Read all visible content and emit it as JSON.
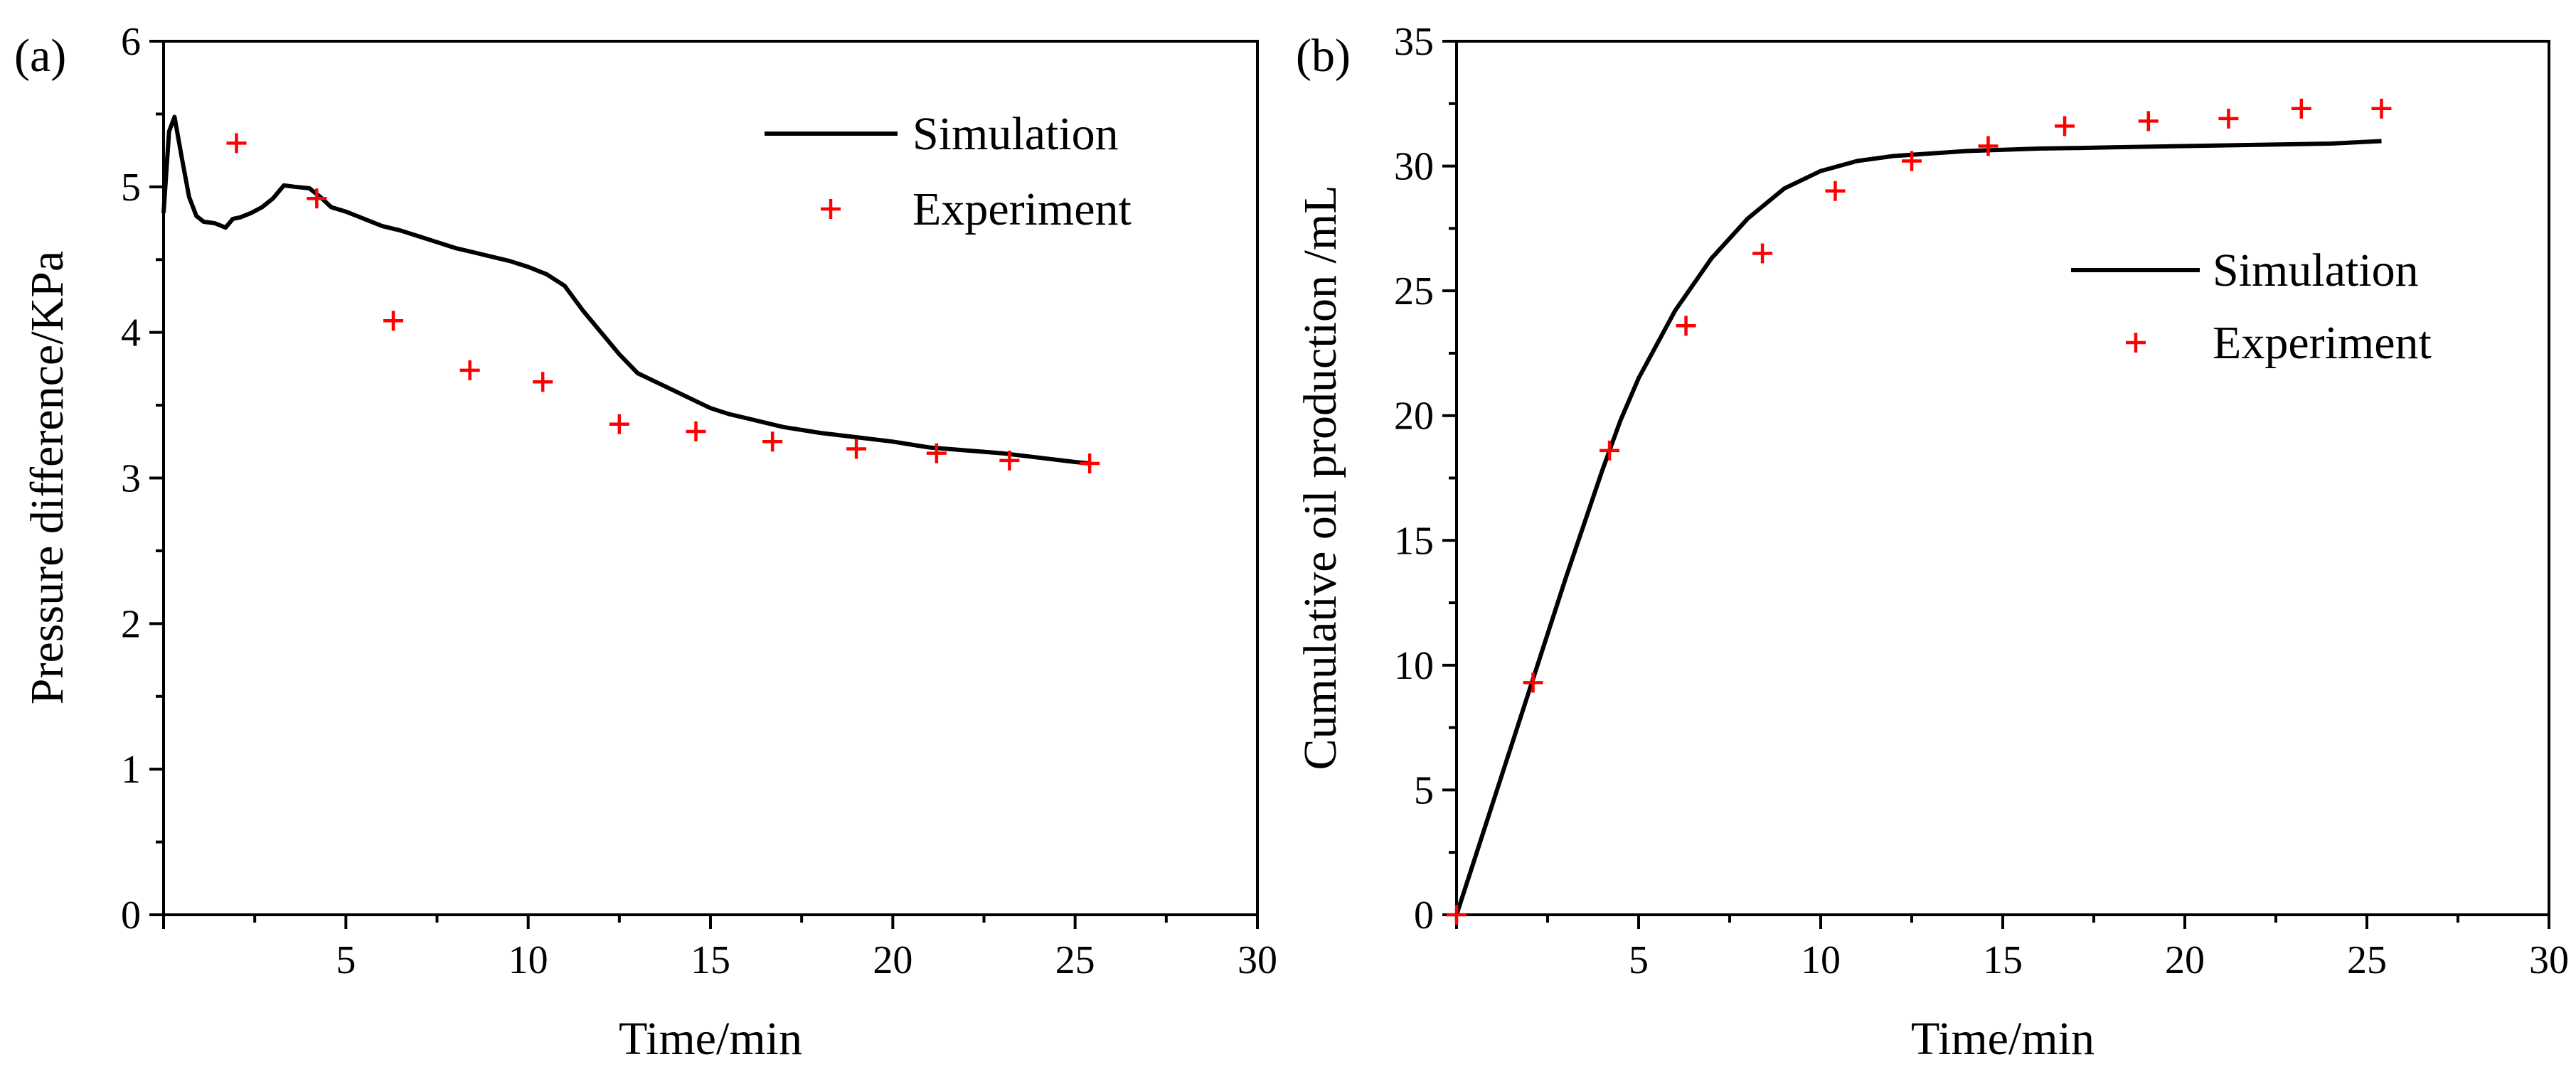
{
  "chart_data": [
    {
      "type": "line",
      "panel_label": "(a)",
      "title": "",
      "xlabel": "Time/min",
      "ylabel": "Pressure difference/KPa",
      "xlim": [
        0,
        30
      ],
      "ylim": [
        0,
        6
      ],
      "x_ticks": [
        0,
        5,
        10,
        15,
        20,
        25,
        30
      ],
      "x_tick_labels": [
        "",
        "5",
        "10",
        "15",
        "20",
        "25",
        "30"
      ],
      "y_ticks": [
        0,
        1,
        2,
        3,
        4,
        5,
        6
      ],
      "y_tick_labels": [
        "0",
        "1",
        "2",
        "3",
        "4",
        "5",
        "6"
      ],
      "legend_position": "top-right",
      "series": [
        {
          "name": "Simulation",
          "style": "line",
          "color": "#000000",
          "x": [
            0,
            0.15,
            0.3,
            0.5,
            0.7,
            0.9,
            1.1,
            1.4,
            1.7,
            1.9,
            2.1,
            2.4,
            2.7,
            3.0,
            3.3,
            3.6,
            4.0,
            4.3,
            4.6,
            5.0,
            5.5,
            6.0,
            6.5,
            7.0,
            7.5,
            8.0,
            8.5,
            9.0,
            9.5,
            10.0,
            10.5,
            11.0,
            11.5,
            12.0,
            12.5,
            13.0,
            13.5,
            14.0,
            14.5,
            15.0,
            15.5,
            16.0,
            16.5,
            17.0,
            18.0,
            19.0,
            20.0,
            21.0,
            22.0,
            23.0,
            24.0,
            25.0,
            25.4
          ],
          "values": [
            4.82,
            5.38,
            5.48,
            5.2,
            4.93,
            4.8,
            4.76,
            4.75,
            4.72,
            4.78,
            4.79,
            4.82,
            4.86,
            4.92,
            5.01,
            5.0,
            4.99,
            4.93,
            4.86,
            4.83,
            4.78,
            4.73,
            4.7,
            4.66,
            4.62,
            4.58,
            4.55,
            4.52,
            4.49,
            4.45,
            4.4,
            4.32,
            4.15,
            4.0,
            3.85,
            3.72,
            3.66,
            3.6,
            3.54,
            3.48,
            3.44,
            3.41,
            3.38,
            3.35,
            3.31,
            3.28,
            3.25,
            3.21,
            3.19,
            3.17,
            3.14,
            3.11,
            3.1
          ]
        },
        {
          "name": "Experiment",
          "style": "marker",
          "color": "#ff0000",
          "x": [
            2.0,
            4.2,
            6.3,
            8.4,
            10.4,
            12.5,
            14.6,
            16.7,
            19.0,
            21.2,
            23.2,
            25.4
          ],
          "values": [
            5.3,
            4.92,
            4.08,
            3.74,
            3.66,
            3.37,
            3.32,
            3.25,
            3.2,
            3.17,
            3.12,
            3.1
          ]
        }
      ]
    },
    {
      "type": "line",
      "panel_label": "(b)",
      "title": "",
      "xlabel": "Time/min",
      "ylabel": "Cumulative oil production /mL",
      "xlim": [
        0,
        30
      ],
      "ylim": [
        0,
        35
      ],
      "x_ticks": [
        0,
        5,
        10,
        15,
        20,
        25,
        30
      ],
      "x_tick_labels": [
        "",
        "5",
        "10",
        "15",
        "20",
        "25",
        "30"
      ],
      "y_ticks": [
        0,
        5,
        10,
        15,
        20,
        25,
        30,
        35
      ],
      "y_tick_labels": [
        "0",
        "5",
        "10",
        "15",
        "20",
        "25",
        "30",
        "35"
      ],
      "legend_position": "right",
      "series": [
        {
          "name": "Simulation",
          "style": "line",
          "color": "#000000",
          "x": [
            0,
            1.0,
            2.0,
            3.0,
            4.0,
            4.5,
            5.0,
            6.0,
            7.0,
            8.0,
            9.0,
            10.0,
            11.0,
            12.0,
            13.0,
            14.0,
            15.0,
            16.0,
            17.0,
            18.0,
            20.0,
            22.0,
            24.0,
            25.4
          ],
          "values": [
            0,
            4.5,
            9.0,
            13.5,
            17.8,
            19.8,
            21.5,
            24.2,
            26.3,
            27.9,
            29.1,
            29.8,
            30.2,
            30.4,
            30.5,
            30.6,
            30.65,
            30.7,
            30.72,
            30.75,
            30.8,
            30.85,
            30.9,
            31.0
          ]
        },
        {
          "name": "Experiment",
          "style": "marker",
          "color": "#ff0000",
          "x": [
            0,
            2.1,
            4.2,
            6.3,
            8.4,
            10.4,
            12.5,
            14.6,
            16.7,
            19.0,
            21.2,
            23.2,
            25.4
          ],
          "values": [
            0,
            9.3,
            18.6,
            23.6,
            26.5,
            29.0,
            30.2,
            30.8,
            31.6,
            31.8,
            31.9,
            32.3,
            32.3
          ]
        }
      ]
    }
  ]
}
